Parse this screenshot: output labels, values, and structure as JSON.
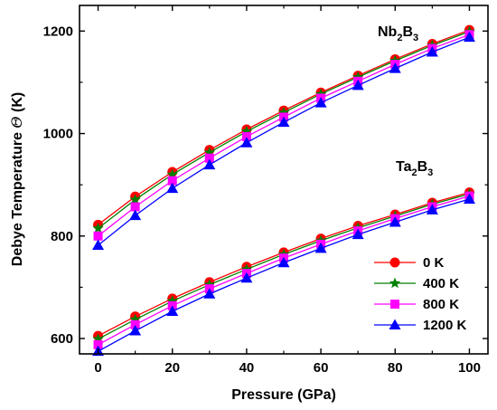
{
  "chart_data": {
    "type": "line",
    "xlabel": "Pressure  (GPa)",
    "ylabel_main": "Debye Temperature ",
    "ylabel_symbol": "Θ",
    "ylabel_unit": " (K)",
    "xlim": [
      -5,
      105
    ],
    "ylim": [
      570,
      1250
    ],
    "xticks": [
      0,
      20,
      40,
      60,
      80,
      100
    ],
    "yticks": [
      600,
      800,
      1000,
      1200
    ],
    "x": [
      0,
      10,
      20,
      30,
      40,
      50,
      60,
      70,
      80,
      90,
      100
    ],
    "legend_position": "bottom-right",
    "annotations": [
      {
        "main": "Nb",
        "sub1": "2",
        "mid": "B",
        "sub2": "3",
        "x": 78,
        "y": 1205
      },
      {
        "main": "Ta",
        "sub1": "2",
        "mid": "B",
        "sub2": "3",
        "x": 78,
        "y": 865
      }
    ],
    "series": [
      {
        "name": "0 K",
        "color": "#ff0000",
        "marker": "circle",
        "values_nb2b3": [
          822,
          877,
          925,
          968,
          1008,
          1045,
          1080,
          1113,
          1145,
          1175,
          1202
        ],
        "values_ta2b3": [
          605,
          643,
          678,
          710,
          740,
          768,
          795,
          820,
          842,
          865,
          885
        ]
      },
      {
        "name": "400 K",
        "color": "#008000",
        "marker": "star",
        "values_nb2b3": [
          815,
          871,
          920,
          963,
          1004,
          1041,
          1077,
          1110,
          1142,
          1172,
          1199
        ],
        "values_ta2b3": [
          599,
          637,
          673,
          705,
          735,
          764,
          791,
          816,
          839,
          862,
          882
        ]
      },
      {
        "name": "800 K",
        "color": "#ff00ff",
        "marker": "square",
        "values_nb2b3": [
          800,
          857,
          908,
          952,
          994,
          1032,
          1069,
          1102,
          1135,
          1166,
          1193
        ],
        "values_ta2b3": [
          588,
          627,
          664,
          697,
          727,
          757,
          784,
          810,
          834,
          857,
          878
        ]
      },
      {
        "name": "1200 K",
        "color": "#0000ff",
        "marker": "triangle",
        "values_nb2b3": [
          782,
          840,
          893,
          939,
          982,
          1022,
          1060,
          1094,
          1127,
          1159,
          1188
        ],
        "values_ta2b3": [
          575,
          615,
          653,
          687,
          718,
          748,
          776,
          803,
          827,
          851,
          872
        ]
      }
    ]
  }
}
